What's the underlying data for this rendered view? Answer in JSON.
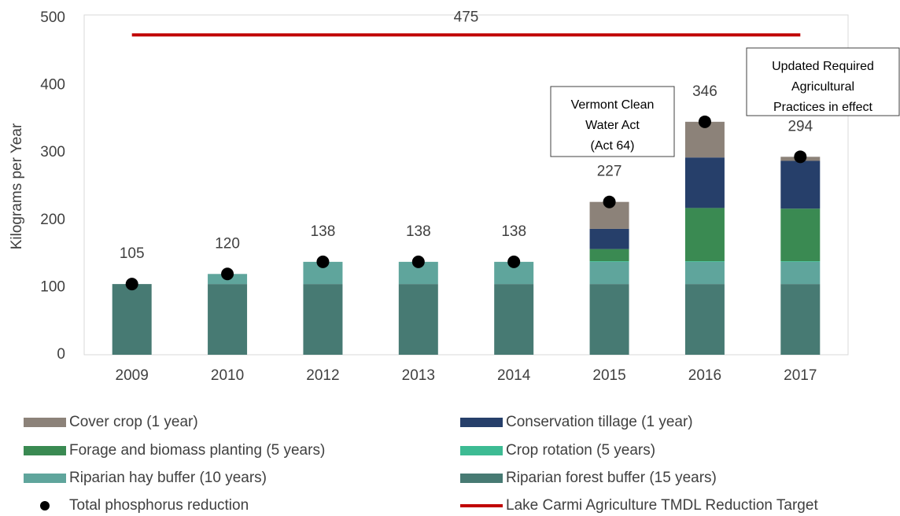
{
  "chart_data": {
    "type": "bar",
    "stacked": true,
    "y_label": "Kilograms per Year",
    "categories": [
      "2009",
      "2010",
      "2012",
      "2013",
      "2014",
      "2015",
      "2016",
      "2017"
    ],
    "series": [
      {
        "name": "Riparian forest buffer (15 years)",
        "color": "#477a73",
        "values": [
          105,
          105,
          105,
          105,
          105,
          105,
          105,
          105
        ]
      },
      {
        "name": "Riparian hay buffer (10 years)",
        "color": "#5fa59c",
        "values": [
          0,
          15,
          33,
          33,
          33,
          33,
          33,
          33
        ]
      },
      {
        "name": "Crop rotation (5 years)",
        "color": "#3dbb93",
        "values": [
          0,
          0,
          0,
          0,
          0,
          1,
          1,
          1
        ]
      },
      {
        "name": "Forage and biomass planting (5 years)",
        "color": "#3a8a52",
        "values": [
          0,
          0,
          0,
          0,
          0,
          18,
          79,
          78
        ]
      },
      {
        "name": "Conservation tillage (1 year)",
        "color": "#263f6a",
        "values": [
          0,
          0,
          0,
          0,
          0,
          30,
          75,
          71
        ]
      },
      {
        "name": "Cover crop (1 year)",
        "color": "#8c8279",
        "values": [
          0,
          0,
          0,
          0,
          0,
          40,
          53,
          6
        ]
      }
    ],
    "totals": {
      "name": "Total phosphorus reduction",
      "color": "#000000",
      "values": [
        105,
        120,
        138,
        138,
        138,
        227,
        346,
        294
      ]
    },
    "target": {
      "name": "Lake Carmi Agriculture TMDL Reduction Target",
      "color": "#c00000",
      "value": 475
    },
    "annotations": [
      {
        "category": "2015",
        "lines": [
          "Vermont Clean",
          "Water Act",
          "(Act 64)"
        ]
      },
      {
        "category": "2017",
        "lines": [
          "Updated Required",
          "Agricultural",
          "Practices in effect"
        ]
      }
    ],
    "ylim": [
      0,
      500
    ],
    "yticks": [
      0,
      100,
      200,
      300,
      400,
      500
    ],
    "grid": false
  }
}
